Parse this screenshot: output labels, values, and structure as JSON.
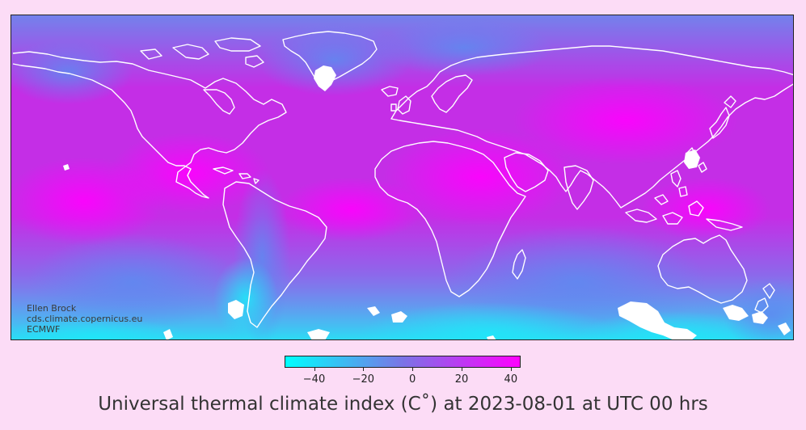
{
  "map": {
    "title": "Universal thermal climate index (C˚) at  2023-08-01 at UTC 00 hrs",
    "credits": [
      "Ellen Brock",
      "cds.climate.copernicus.eu",
      "ECMWF"
    ],
    "colors": {
      "page_background": "#fcdcf6",
      "cold": "#00ffff",
      "mid": "#7a74e6",
      "hot": "#ff00ff",
      "coastline": "#ffffff",
      "ice": "#ffffff"
    },
    "colorbar": {
      "min": -52,
      "max": 44,
      "ticks": [
        {
          "value": -40,
          "label": "−40"
        },
        {
          "value": -20,
          "label": "−20"
        },
        {
          "value": 0,
          "label": "0"
        },
        {
          "value": 20,
          "label": "20"
        },
        {
          "value": 40,
          "label": "40"
        }
      ]
    }
  }
}
